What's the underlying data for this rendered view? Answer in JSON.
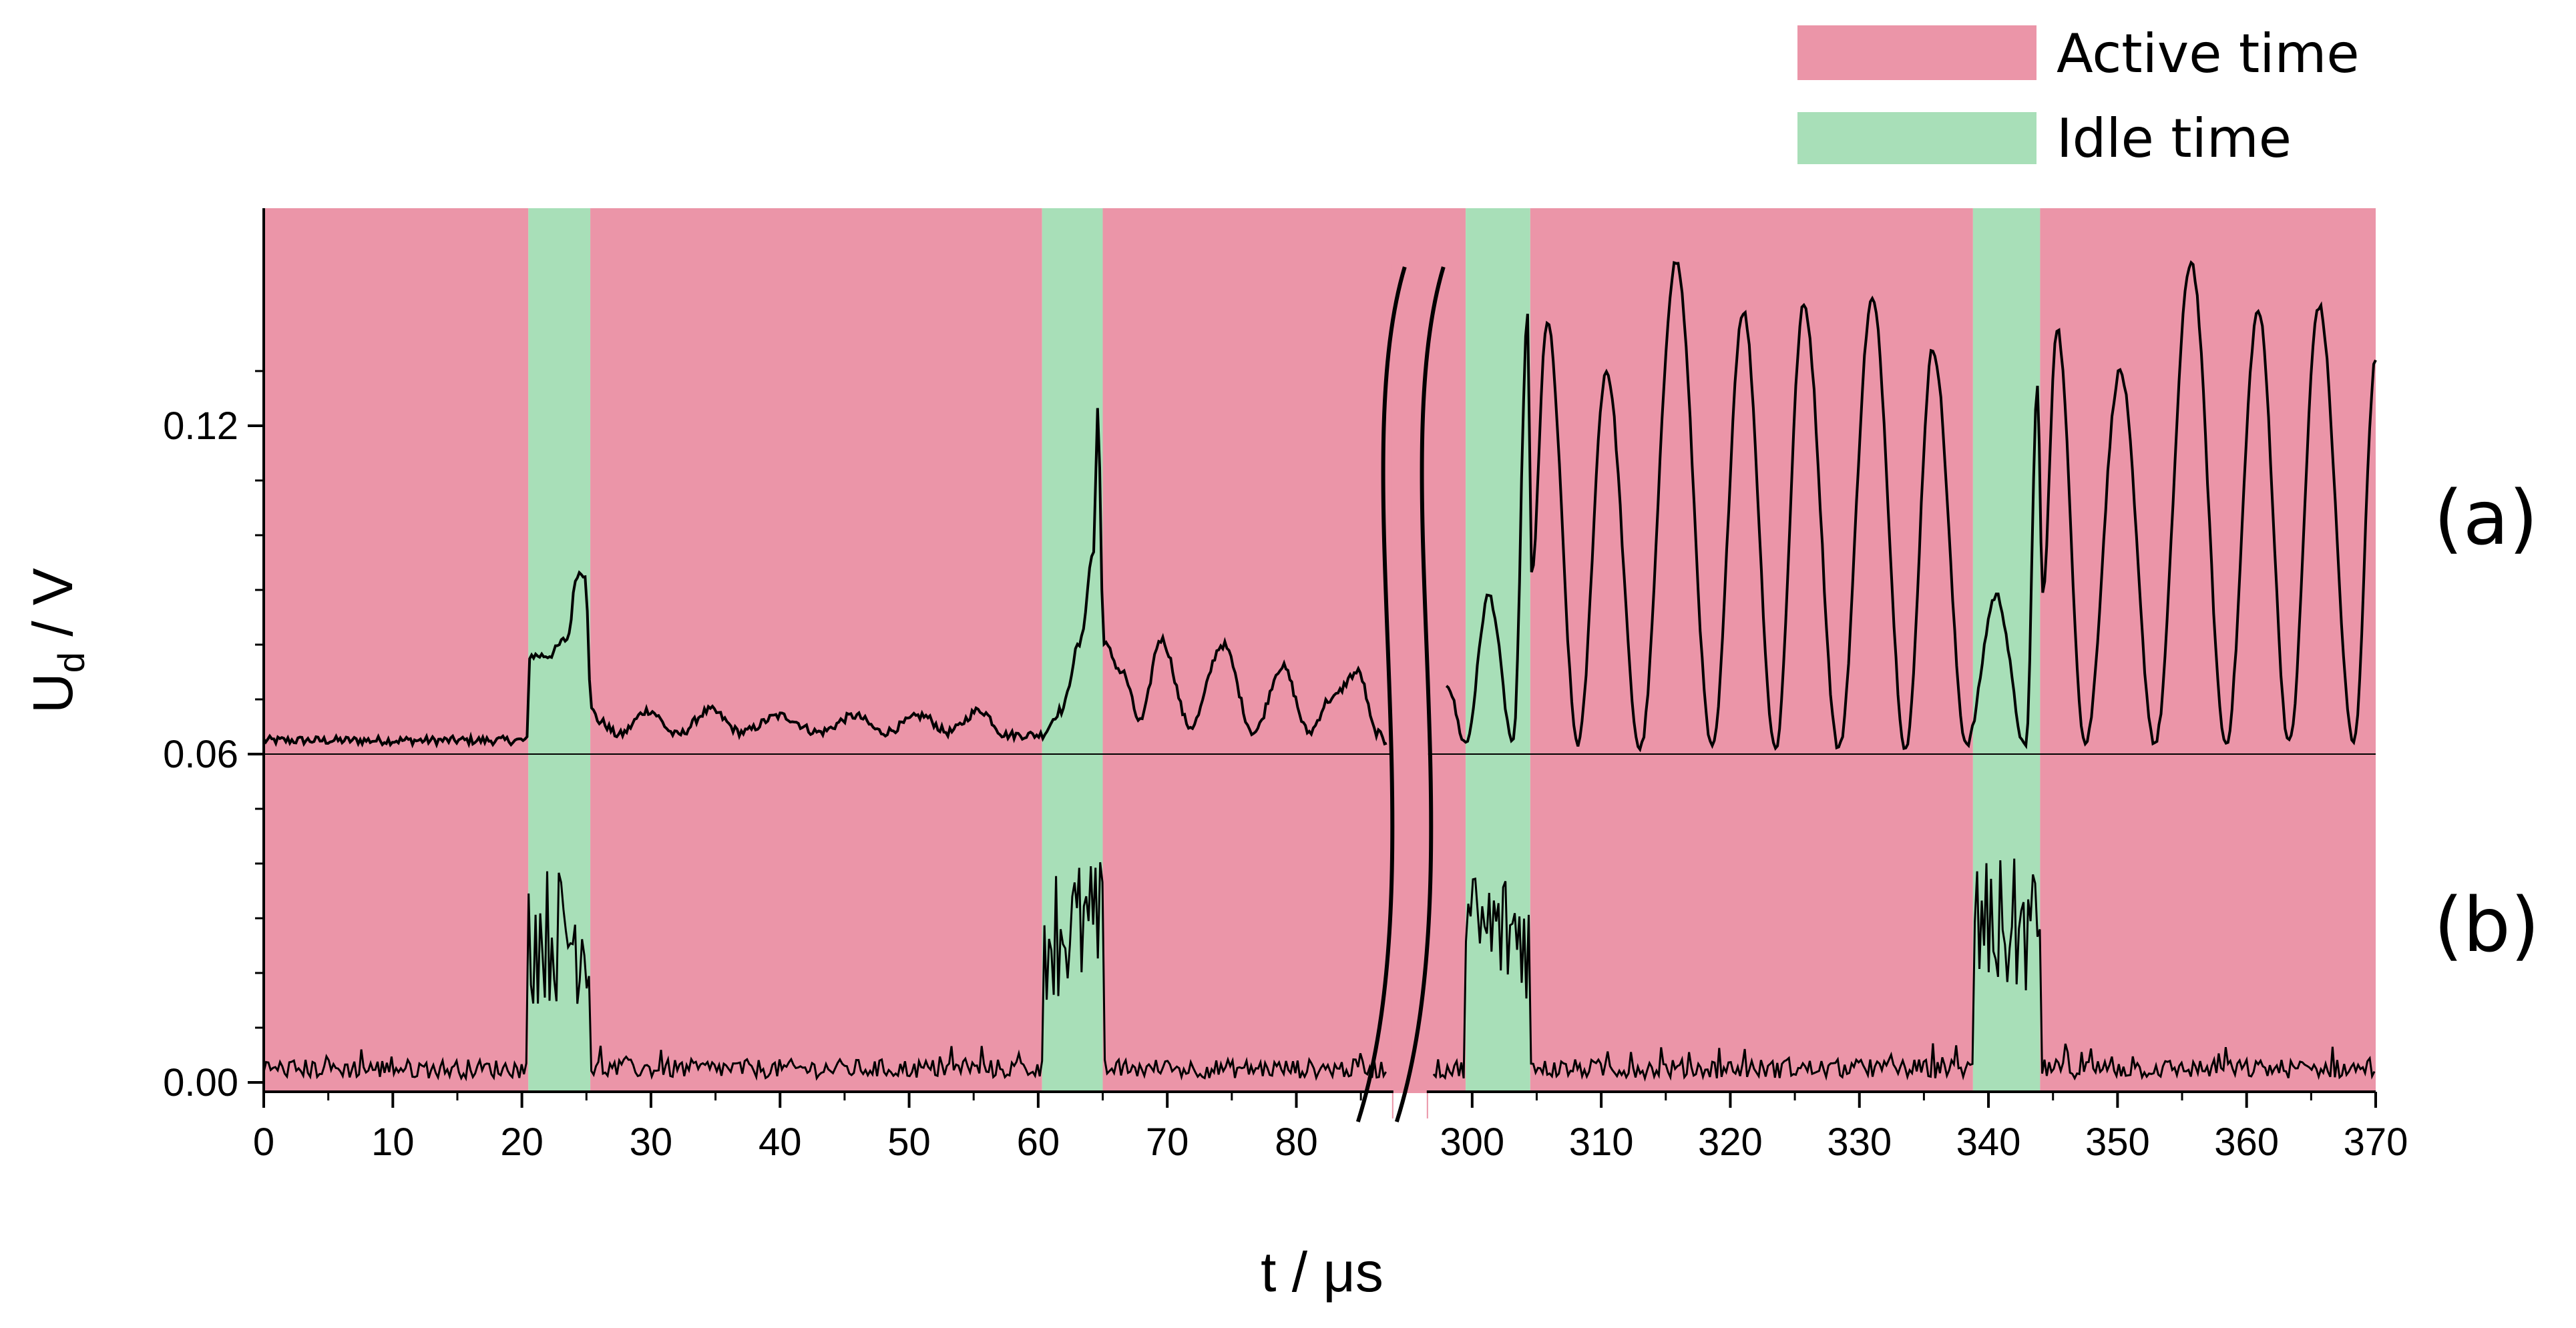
{
  "chart_data": {
    "type": "line",
    "title": "",
    "xlabel": "t / μs",
    "ylabel": "U",
    "ylabel_sub": "d",
    "ylabel_unit": " / V",
    "xlim": [
      0,
      370
    ],
    "x_axis_break": [
      87,
      297
    ],
    "ylim": [
      -0.002,
      0.1
    ],
    "y_ticks": [
      0.0,
      0.06,
      0.12
    ],
    "y_tick_labels": [
      "0.00",
      "0.06",
      "0.12"
    ],
    "x_ticks": [
      0,
      10,
      20,
      30,
      40,
      50,
      60,
      70,
      80,
      300,
      310,
      320,
      330,
      340,
      350,
      360,
      370
    ],
    "x_tick_labels": [
      "0",
      "10",
      "20",
      "30",
      "40",
      "50",
      "60",
      "70",
      "80",
      "300",
      "310",
      "320",
      "330",
      "340",
      "350",
      "360",
      "370"
    ],
    "baseline_y": 0.06,
    "legend": {
      "placement": "top-right",
      "items": [
        {
          "label": "Active time",
          "color": "#eb95a8"
        },
        {
          "label": "Idle time",
          "color": "#a8dfb8"
        }
      ]
    },
    "regions": [
      {
        "type": "Active time",
        "x0": 0,
        "x1": 20.5
      },
      {
        "type": "Idle time",
        "x0": 20.5,
        "x1": 25.3
      },
      {
        "type": "Active time",
        "x0": 25.3,
        "x1": 60.3
      },
      {
        "type": "Idle time",
        "x0": 60.3,
        "x1": 65.0
      },
      {
        "type": "Active time",
        "x0": 65.0,
        "x1": 299.5
      },
      {
        "type": "Idle time",
        "x0": 299.5,
        "x1": 304.5
      },
      {
        "type": "Active time",
        "x0": 304.5,
        "x1": 338.8
      },
      {
        "type": "Idle time",
        "x0": 338.8,
        "x1": 344.0
      },
      {
        "type": "Active time",
        "x0": 344.0,
        "x1": 370
      }
    ],
    "series": [
      {
        "label": "(a)",
        "x": [
          0,
          20.4,
          20.6,
          22,
          23.5,
          24.3,
          24.9,
          25.4,
          26,
          27.5,
          29.8,
          32,
          34.6,
          37,
          40,
          43,
          45.8,
          48,
          51,
          53,
          55.5,
          57.5,
          60.2,
          61.8,
          63.2,
          64.3,
          64.6,
          65.1,
          66.5,
          67.9,
          69.5,
          71.8,
          74.3,
          76.7,
          78.9,
          81,
          82.6,
          84.8,
          86.2,
          87,
          298,
          299.5,
          301.3,
          303.2,
          304.3,
          304.6,
          305.8,
          308.2,
          310.4,
          313,
          315.8,
          318.6,
          321,
          323.5,
          325.7,
          328.4,
          331,
          333.6,
          335.7,
          338.3,
          340.6,
          342.9,
          343.8,
          344.2,
          345.3,
          347.5,
          350.2,
          352.9,
          355.7,
          358.4,
          360.9,
          363.3,
          365.6,
          368.3,
          370
        ],
        "y": [
          0.0625,
          0.0625,
          0.078,
          0.078,
          0.081,
          0.093,
          0.093,
          0.068,
          0.066,
          0.0635,
          0.068,
          0.0635,
          0.068,
          0.064,
          0.067,
          0.064,
          0.067,
          0.064,
          0.067,
          0.064,
          0.068,
          0.0635,
          0.0635,
          0.068,
          0.08,
          0.097,
          0.123,
          0.08,
          0.075,
          0.066,
          0.081,
          0.065,
          0.08,
          0.064,
          0.076,
          0.064,
          0.07,
          0.075,
          0.064,
          0.062,
          0.073,
          0.062,
          0.089,
          0.062,
          0.14,
          0.093,
          0.139,
          0.062,
          0.13,
          0.061,
          0.15,
          0.061,
          0.141,
          0.061,
          0.142,
          0.061,
          0.143,
          0.061,
          0.134,
          0.062,
          0.089,
          0.061,
          0.127,
          0.089,
          0.138,
          0.062,
          0.13,
          0.062,
          0.15,
          0.062,
          0.141,
          0.062,
          0.142,
          0.062,
          0.132
        ]
      },
      {
        "label": "(b)",
        "noise_floor": 0.0025,
        "bursts": [
          {
            "x0": 20.5,
            "x1": 25.3,
            "min": 0.014,
            "max": 0.04
          },
          {
            "x0": 60.3,
            "x1": 65.0,
            "min": 0.015,
            "max": 0.041
          },
          {
            "x0": 299.5,
            "x1": 304.5,
            "min": 0.015,
            "max": 0.04
          },
          {
            "x0": 338.8,
            "x1": 344.0,
            "min": 0.015,
            "max": 0.041
          }
        ]
      }
    ]
  }
}
